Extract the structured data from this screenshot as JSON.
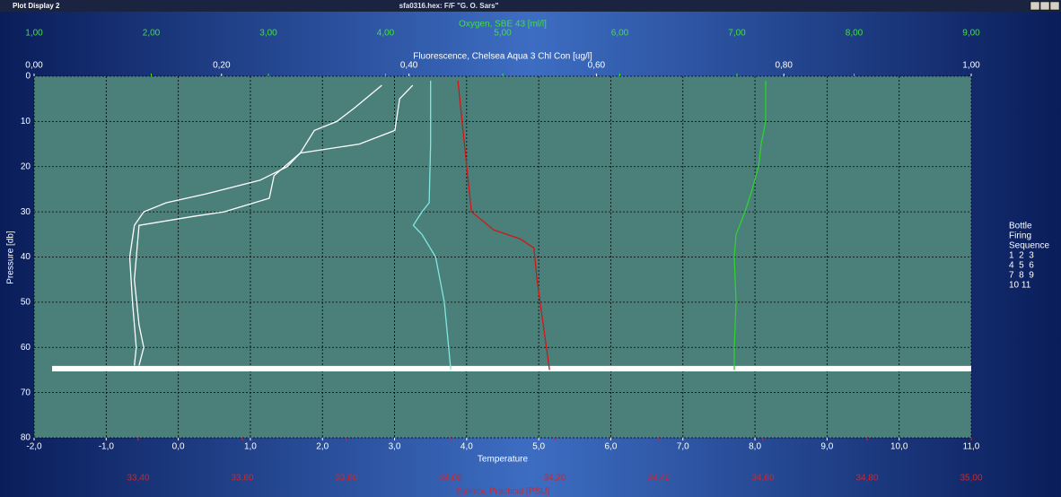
{
  "window": {
    "title": "Plot Display 2",
    "file": "sfa0316.hex: F/F \"G. O. Sars\""
  },
  "chart_data": {
    "type": "line",
    "ylabel": "Pressure [db]",
    "ylim": [
      0,
      80
    ],
    "yticks": [
      0,
      10,
      20,
      30,
      40,
      50,
      60,
      70,
      80
    ],
    "y_inverted": true,
    "grid": true,
    "x_axes": [
      {
        "label": "Oxygen, SBE 43 [ml/l]",
        "position": "top",
        "color": "#3fe03f",
        "lim": [
          1,
          9
        ],
        "ticks": [
          {
            "value": 1,
            "label": "1,00"
          },
          {
            "value": 2,
            "label": "2,00"
          },
          {
            "value": 3,
            "label": "3,00"
          },
          {
            "value": 4,
            "label": "4,00"
          },
          {
            "value": 5,
            "label": "5,00"
          },
          {
            "value": 6,
            "label": "6,00"
          },
          {
            "value": 7,
            "label": "7,00"
          },
          {
            "value": 8,
            "label": "8,00"
          },
          {
            "value": 9,
            "label": "9,00"
          }
        ]
      },
      {
        "label": "Fluorescence, Chelsea Aqua 3 Chl Con [ug/l]",
        "position": "top",
        "color": "#ffffff",
        "lim": [
          0,
          1
        ],
        "ticks": [
          {
            "value": 0,
            "label": "0,00"
          },
          {
            "value": 0.2,
            "label": "0,20"
          },
          {
            "value": 0.4,
            "label": "0,40"
          },
          {
            "value": 0.6,
            "label": "0,60"
          },
          {
            "value": 0.8,
            "label": "0,80"
          },
          {
            "value": 1,
            "label": "1,00"
          }
        ]
      },
      {
        "label": "Temperature",
        "position": "bottom",
        "color": "#ffffff",
        "lim": [
          -2,
          11
        ],
        "grid": true,
        "ticks": [
          {
            "value": -2,
            "label": "-2,0"
          },
          {
            "value": -1,
            "label": "-1,0"
          },
          {
            "value": 0,
            "label": "0,0"
          },
          {
            "value": 1,
            "label": "1,0"
          },
          {
            "value": 2,
            "label": "2,0"
          },
          {
            "value": 3,
            "label": "3,0"
          },
          {
            "value": 4,
            "label": "4,0"
          },
          {
            "value": 5,
            "label": "5,0"
          },
          {
            "value": 6,
            "label": "6,0"
          },
          {
            "value": 7,
            "label": "7,0"
          },
          {
            "value": 8,
            "label": "8,0"
          },
          {
            "value": 9,
            "label": "9,0"
          },
          {
            "value": 10,
            "label": "10,0"
          },
          {
            "value": 11,
            "label": "11,0"
          }
        ]
      },
      {
        "label": "Salinity, Practical [PSU]",
        "position": "bottom",
        "color": "#e02020",
        "lim": [
          33.2,
          35.0
        ],
        "ticks": [
          {
            "value": 33.4,
            "label": "33,40"
          },
          {
            "value": 33.6,
            "label": "33,60"
          },
          {
            "value": 33.8,
            "label": "33,80"
          },
          {
            "value": 34.0,
            "label": "34,00"
          },
          {
            "value": 34.2,
            "label": "34,20"
          },
          {
            "value": 34.4,
            "label": "34,40"
          },
          {
            "value": 34.6,
            "label": "34,60"
          },
          {
            "value": 34.8,
            "label": "34,80"
          },
          {
            "value": 35.0,
            "label": "35,00"
          }
        ]
      }
    ],
    "series": [
      {
        "color": "#ffffff",
        "axis": 1,
        "values": [
          0.371,
          0.342,
          0.323,
          0.299,
          0.284,
          0.27,
          0.241,
          0.184,
          0.141,
          0.117,
          0.107,
          0.102,
          0.105,
          0.109,
          0.107
        ],
        "pressure": [
          2,
          7,
          10,
          12,
          17,
          20,
          23,
          26,
          28,
          30,
          33,
          40,
          50,
          60,
          64
        ]
      },
      {
        "color": "#ffffff",
        "axis": 1,
        "values": [
          0.404,
          0.39,
          0.385,
          0.347,
          0.284,
          0.256,
          0.251,
          0.203,
          0.17,
          0.112,
          0.107,
          0.112,
          0.117,
          0.112
        ],
        "pressure": [
          2,
          5,
          12,
          15,
          17,
          22,
          27,
          30,
          31,
          33,
          45,
          55,
          60,
          64
        ]
      },
      {
        "color": "#7fe8e0",
        "axis": 2,
        "values": [
          3.5,
          3.5,
          3.48,
          3.38,
          3.26,
          3.38,
          3.57,
          3.69,
          3.75,
          3.78
        ],
        "pressure": [
          1,
          15,
          28,
          30,
          33,
          35,
          40,
          50,
          60,
          65
        ]
      },
      {
        "color": "#d01818",
        "axis": 3,
        "values": [
          34.014,
          34.022,
          34.031,
          34.04,
          34.083,
          34.134,
          34.16,
          34.166,
          34.178,
          34.19
        ],
        "pressure": [
          1,
          10,
          20,
          30,
          34,
          36,
          38,
          45,
          55,
          65
        ]
      },
      {
        "color": "#30d030",
        "axis": 0,
        "values": [
          7.245,
          7.245,
          7.207,
          7.184,
          7.13,
          7.069,
          6.992,
          6.977,
          6.992,
          6.977,
          6.977
        ],
        "pressure": [
          1,
          10,
          15,
          20,
          25,
          30,
          35,
          40,
          50,
          60,
          65
        ]
      }
    ],
    "bottles": [
      64.2,
      64.3,
      64.4,
      64.5,
      64.6,
      64.7,
      64.8,
      64.9,
      65.0,
      65.1,
      65.2
    ],
    "legend": {
      "title": [
        "Bottle",
        "Firing",
        "Sequence"
      ],
      "rows": [
        "1  2  3",
        "4  5  6",
        "7  8  9",
        "10 11"
      ]
    }
  }
}
